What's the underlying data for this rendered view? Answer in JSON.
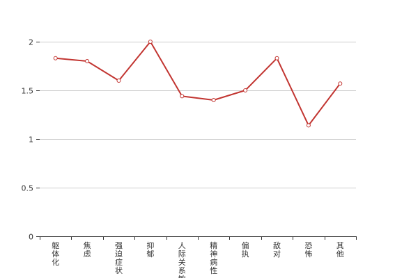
{
  "chart_data": {
    "type": "line",
    "categories": [
      "躯体化",
      "焦虑",
      "强迫症状",
      "抑郁",
      "人际关系敏感",
      "精神病性",
      "偏执",
      "敌对",
      "恐怖",
      "其他"
    ],
    "series": [
      {
        "values": [
          1.83,
          1.8,
          1.6,
          2.0,
          1.44,
          1.4,
          1.5,
          1.83,
          1.14,
          1.57
        ]
      }
    ],
    "y_ticks": [
      0,
      0.5,
      1,
      1.5,
      2
    ],
    "y_tick_labels": [
      "0",
      "0.5",
      "1",
      "1.5",
      "2"
    ],
    "ylim": [
      0,
      2
    ],
    "grid": true,
    "colors": {
      "line": "#c23531",
      "grid": "#cccccc",
      "axis": "#333333"
    },
    "marker": "empty-circle"
  }
}
